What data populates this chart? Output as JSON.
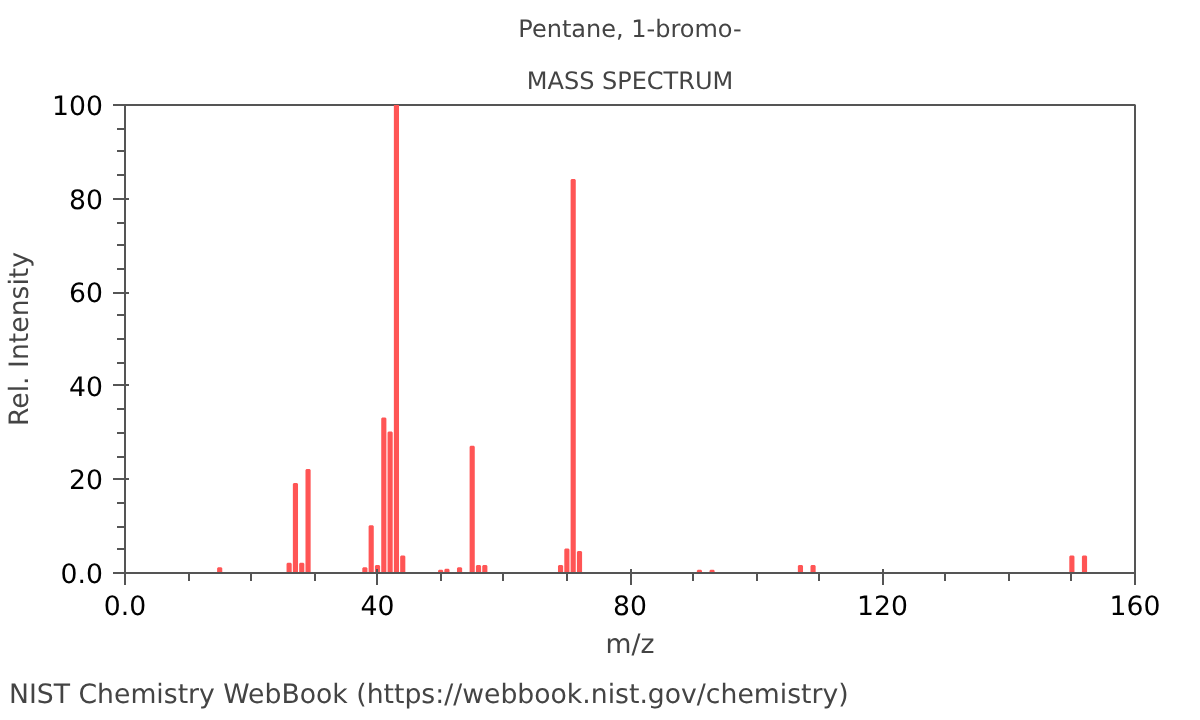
{
  "chart_data": {
    "type": "bar",
    "title": "Pentane, 1-bromo-",
    "subtitle": "MASS SPECTRUM",
    "xlabel": "m/z",
    "ylabel": "Rel. Intensity",
    "x": [
      15,
      26,
      27,
      28,
      29,
      38,
      39,
      40,
      41,
      42,
      43,
      44,
      50,
      51,
      53,
      55,
      56,
      57,
      69,
      70,
      71,
      72,
      91,
      93,
      107,
      109,
      150,
      152
    ],
    "values": [
      1,
      2,
      19,
      2,
      22,
      1,
      10,
      1.5,
      33,
      30,
      100,
      3.5,
      0.5,
      0.7,
      1,
      27,
      1.5,
      1.5,
      1.5,
      5,
      84,
      4.5,
      0.5,
      0.5,
      1.5,
      1.5,
      3.5,
      3.5
    ],
    "color": "#ff5555",
    "xlim": [
      0,
      160
    ],
    "xticks": [
      {
        "value": 0,
        "label": "0.0"
      },
      40,
      80,
      120,
      160
    ],
    "ylim": [
      0,
      100
    ],
    "yticks": [
      {
        "value": 0,
        "label": "0.0"
      },
      20,
      40,
      60,
      80,
      100
    ],
    "grid": false,
    "annotations": [
      "NIST Chemistry WebBook (https://webbook.nist.gov/chemistry)"
    ]
  }
}
